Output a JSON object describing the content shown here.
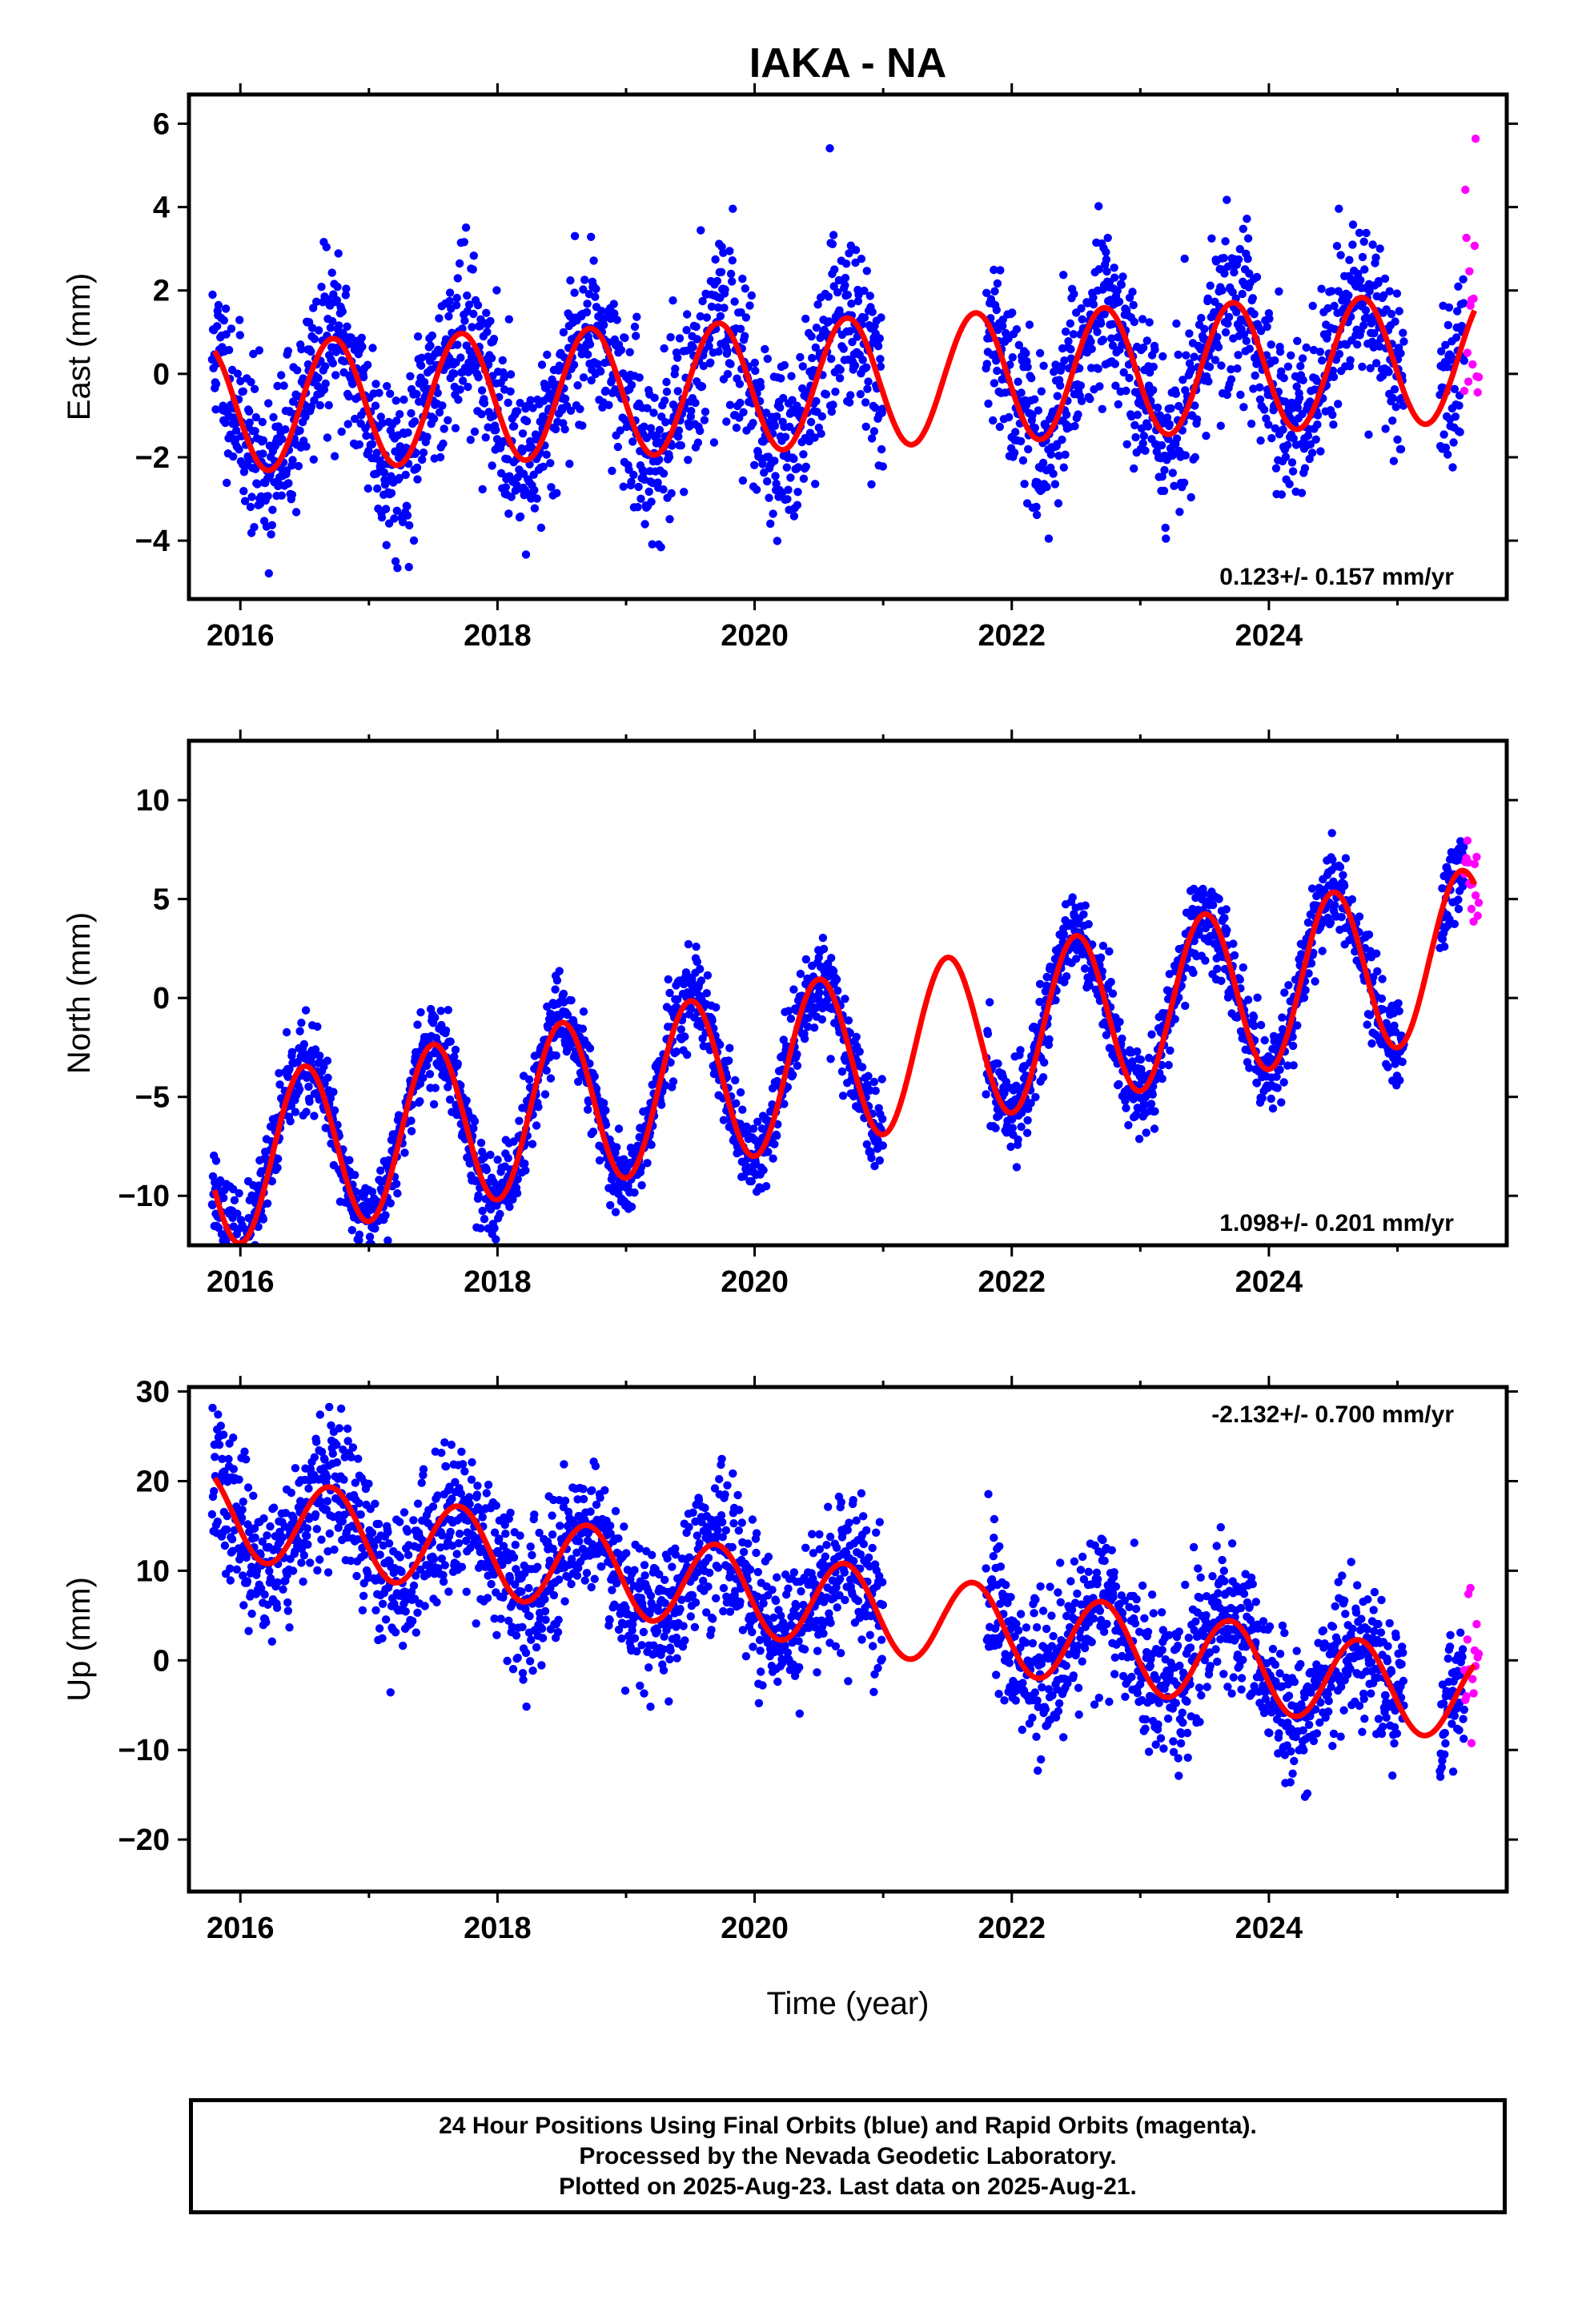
{
  "title": "IAKA - NA",
  "xlabel": "Time (year)",
  "footer": {
    "line1": "24 Hour Positions Using Final Orbits (blue) and Rapid Orbits (magenta).",
    "line2": "Processed by the Nevada Geodetic Laboratory.",
    "line3": "Plotted on 2025-Aug-23. Last data on 2025-Aug-21."
  },
  "colors": {
    "final": "#0000ff",
    "rapid": "#ff00ff",
    "model": "#ff0000",
    "axis": "#000000"
  },
  "chart_data": [
    {
      "type": "scatter",
      "ylabel": "East (mm)",
      "rate": "0.123+/- 0.157 mm/yr",
      "xlim": [
        2015.6,
        2025.85
      ],
      "ylim": [
        -5.4,
        6.7
      ],
      "xticks": [
        2016,
        2018,
        2020,
        2022,
        2024
      ],
      "yticks": [
        -4,
        -2,
        0,
        2,
        4,
        6
      ],
      "model": {
        "trend": 0.123,
        "offset": -0.3,
        "annual_amp": 1.55,
        "peak_phase": 0.72,
        "breaks": [],
        "x": [
          2015.8,
          2025.6
        ]
      },
      "data": {
        "segments": [
          [
            2015.78,
            2021.0
          ],
          [
            2021.8,
            2025.05
          ],
          [
            2025.33,
            2025.52
          ]
        ],
        "final_end": 2025.52,
        "rapid_start": 2025.52,
        "end": 2025.64,
        "scatter_sd": 1.0,
        "step_days": 1.3,
        "seed": 11
      },
      "series": [
        {
          "name": "Final Orbits",
          "color": "#0000ff"
        },
        {
          "name": "Rapid Orbits",
          "color": "#ff00ff"
        }
      ]
    },
    {
      "type": "scatter",
      "ylabel": "North (mm)",
      "rate": "1.098+/- 0.201 mm/yr",
      "xlim": [
        2015.6,
        2025.85
      ],
      "ylim": [
        -12.5,
        13.0
      ],
      "xticks": [
        2016,
        2018,
        2020,
        2022,
        2024
      ],
      "yticks": [
        -10,
        -5,
        0,
        5,
        10
      ],
      "model": {
        "trend": 1.098,
        "offset": -3.8,
        "annual_amp": 4.2,
        "peak_phase": 0.5,
        "breaks": [],
        "x": [
          2015.8,
          2025.6
        ]
      },
      "data": {
        "segments": [
          [
            2015.78,
            2021.0
          ],
          [
            2021.8,
            2025.05
          ],
          [
            2025.33,
            2025.52
          ]
        ],
        "final_end": 2025.52,
        "rapid_start": 2025.52,
        "end": 2025.64,
        "scatter_sd": 1.1,
        "step_days": 1.3,
        "seed": 23
      },
      "series": [
        {
          "name": "Final Orbits",
          "color": "#0000ff"
        },
        {
          "name": "Rapid Orbits",
          "color": "#ff00ff"
        }
      ]
    },
    {
      "type": "scatter",
      "ylabel": "Up (mm)",
      "rate": "-2.132+/- 0.700 mm/yr",
      "xlim": [
        2015.6,
        2025.85
      ],
      "ylim": [
        -25.8,
        30.5
      ],
      "xticks": [
        2016,
        2018,
        2020,
        2022,
        2024
      ],
      "yticks": [
        -20,
        -10,
        0,
        10,
        20,
        30
      ],
      "model": {
        "trend": -2.132,
        "offset": 7.5,
        "annual_amp": 4.8,
        "peak_phase": 0.7,
        "breaks": [],
        "x": [
          2015.8,
          2025.6
        ]
      },
      "data": {
        "segments": [
          [
            2015.78,
            2021.0
          ],
          [
            2021.8,
            2025.05
          ],
          [
            2025.33,
            2025.52
          ]
        ],
        "final_end": 2025.52,
        "rapid_start": 2025.52,
        "end": 2025.64,
        "scatter_sd": 4.0,
        "step_days": 1.3,
        "seed": 37
      },
      "series": [
        {
          "name": "Final Orbits",
          "color": "#0000ff"
        },
        {
          "name": "Rapid Orbits",
          "color": "#ff00ff"
        }
      ]
    }
  ]
}
